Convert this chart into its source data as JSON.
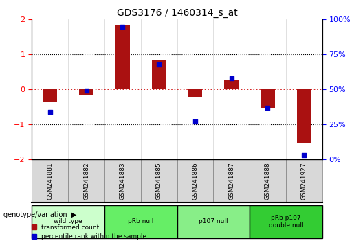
{
  "title": "GDS3176 / 1460314_s_at",
  "samples": [
    "GSM241881",
    "GSM241882",
    "GSM241883",
    "GSM241885",
    "GSM241886",
    "GSM241887",
    "GSM241888",
    "GSM241927"
  ],
  "red_bars": [
    -0.35,
    -0.18,
    1.85,
    0.82,
    -0.22,
    0.28,
    -0.55,
    -1.55
  ],
  "blue_dots_pct": [
    34,
    49,
    95,
    68,
    27,
    58,
    37,
    3
  ],
  "ylim": [
    -2,
    2
  ],
  "yticks": [
    -2,
    -1,
    0,
    1,
    2
  ],
  "genotype_groups": [
    {
      "label": "wild type",
      "start": 0,
      "end": 1,
      "color": "#ccffcc"
    },
    {
      "label": "pRb null",
      "start": 2,
      "end": 3,
      "color": "#66ee66"
    },
    {
      "label": "p107 null",
      "start": 4,
      "end": 5,
      "color": "#88ee88"
    },
    {
      "label": "pRb p107\ndouble null",
      "start": 6,
      "end": 7,
      "color": "#33cc33"
    }
  ],
  "bar_color": "#aa1111",
  "dot_color": "#0000cc",
  "hline_color": "#cc0000",
  "legend_red": "transformed count",
  "legend_blue": "percentile rank within the sample",
  "xlabel_genotype": "genotype/variation"
}
